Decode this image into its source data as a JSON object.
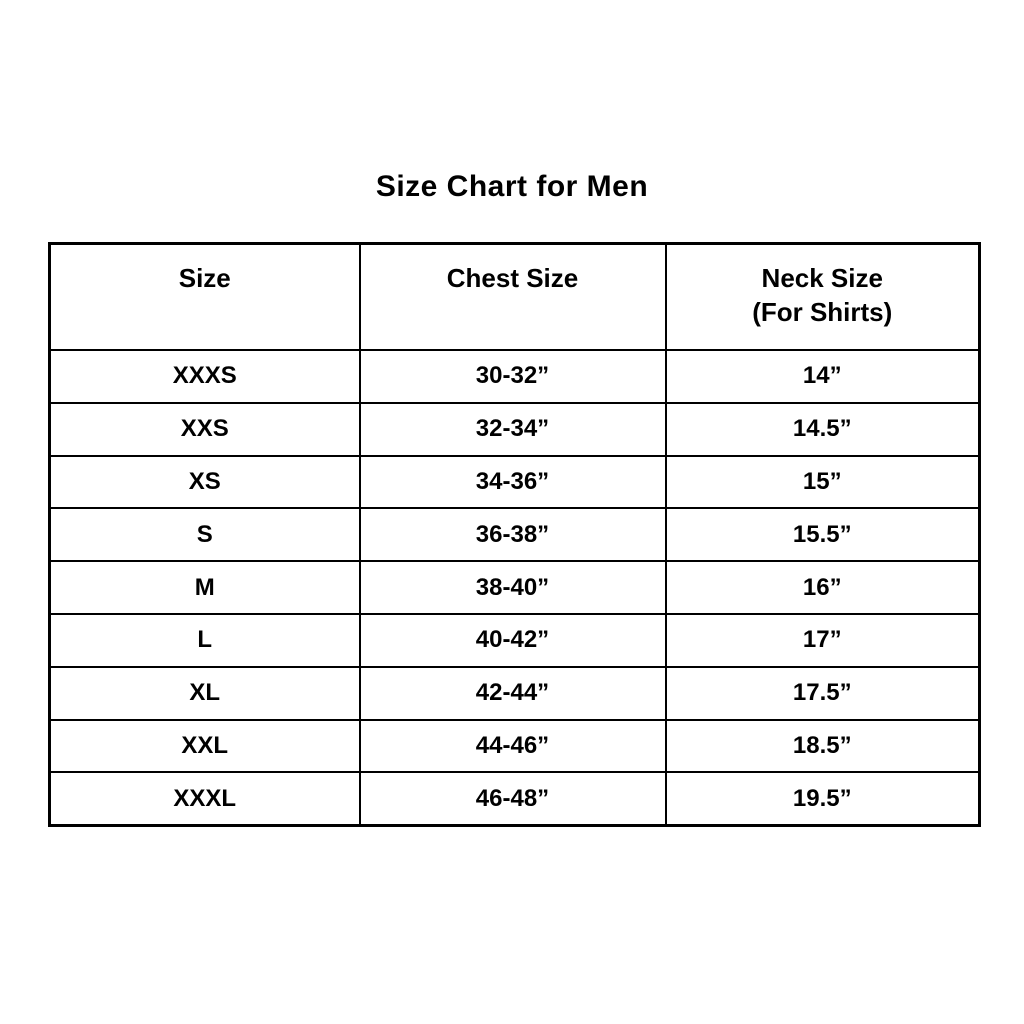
{
  "page": {
    "title": "Size Chart for Men"
  },
  "colors": {
    "text": "#000000",
    "background": "#ffffff",
    "border": "#000000"
  },
  "table": {
    "columns": [
      {
        "label": "Size",
        "sublabel": ""
      },
      {
        "label": "Chest Size",
        "sublabel": ""
      },
      {
        "label": "Neck Size",
        "sublabel": "(For Shirts)"
      }
    ],
    "rows": [
      {
        "size": "XXXS",
        "chest": "30-32”",
        "neck": "14”"
      },
      {
        "size": "XXS",
        "chest": "32-34”",
        "neck": "14.5”"
      },
      {
        "size": "XS",
        "chest": "34-36”",
        "neck": "15”"
      },
      {
        "size": "S",
        "chest": "36-38”",
        "neck": "15.5”"
      },
      {
        "size": "M",
        "chest": "38-40”",
        "neck": "16”"
      },
      {
        "size": "L",
        "chest": "40-42”",
        "neck": "17”"
      },
      {
        "size": "XL",
        "chest": "42-44”",
        "neck": "17.5”"
      },
      {
        "size": "XXL",
        "chest": "44-46”",
        "neck": "18.5”"
      },
      {
        "size": "XXXL",
        "chest": "46-48”",
        "neck": "19.5”"
      }
    ]
  }
}
